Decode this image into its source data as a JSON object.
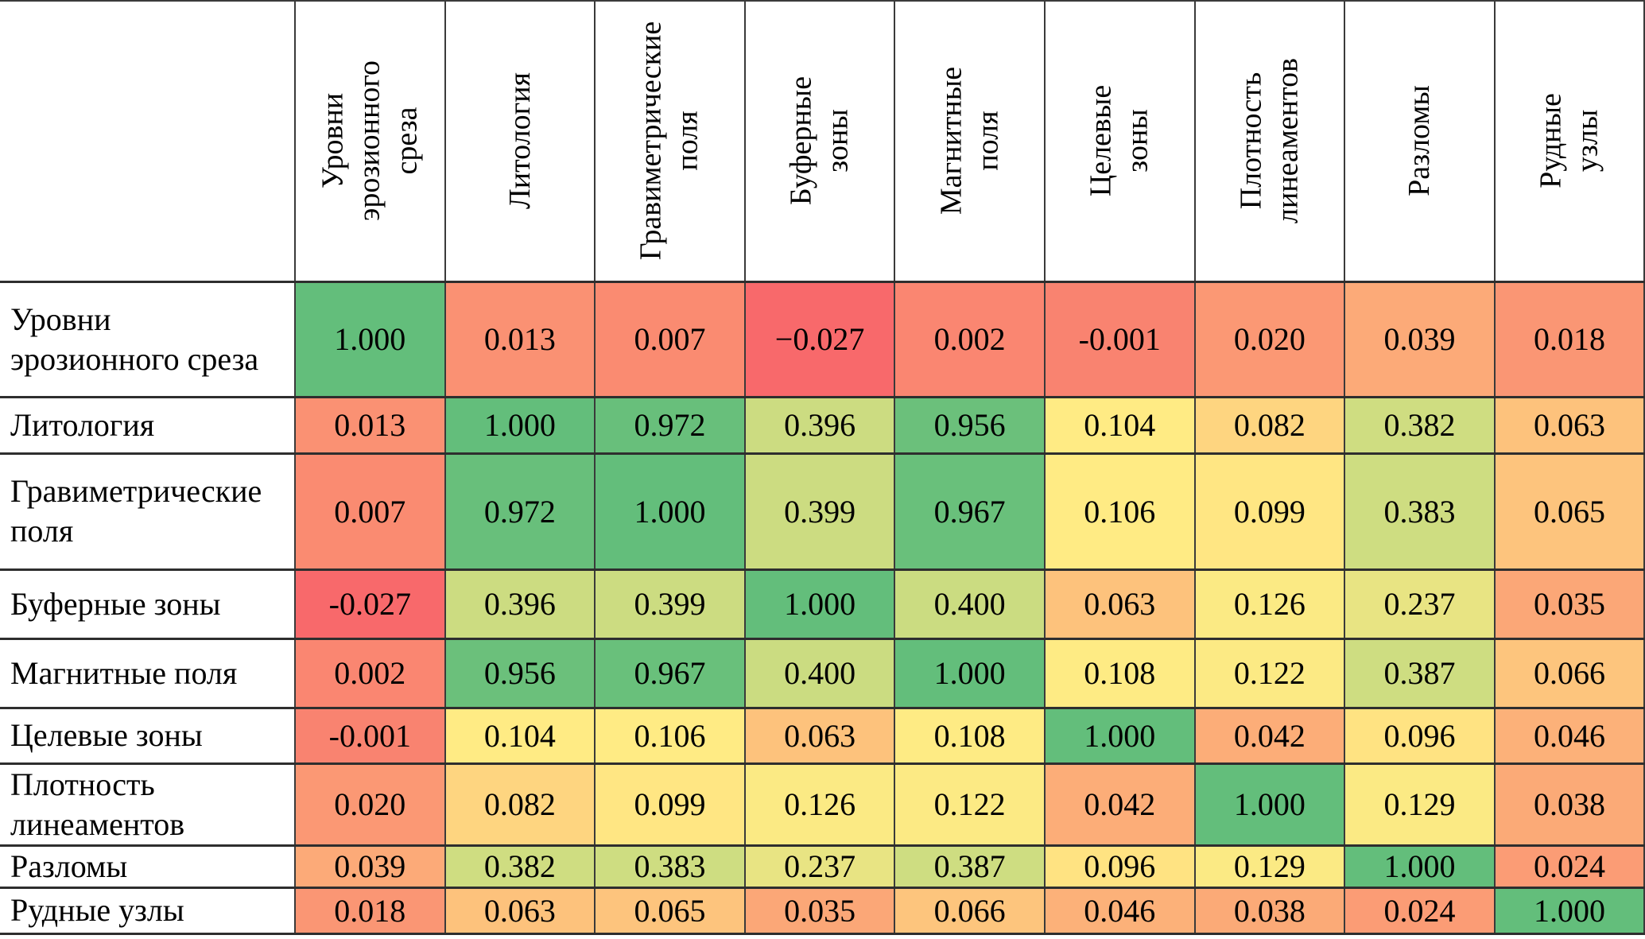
{
  "table": {
    "corner_label": "",
    "columns": [
      {
        "label": "Уровни\nэрозионного\nсреза"
      },
      {
        "label": "Литология"
      },
      {
        "label": "Гравиметрические\nполя"
      },
      {
        "label": "Буферные\nзоны"
      },
      {
        "label": "Магнитные\nполя"
      },
      {
        "label": "Целевые\nзоны"
      },
      {
        "label": "Плотность\nлинеаментов"
      },
      {
        "label": "Разломы"
      },
      {
        "label": "Рудные\nузлы"
      }
    ],
    "rows": [
      {
        "label": "Уровни\nэрозионного среза",
        "cells": [
          "1.000",
          "0.013",
          "0.007",
          "−0.027",
          "0.002",
          "-0.001",
          "0.020",
          "0.039",
          "0.018"
        ]
      },
      {
        "label": "Литология",
        "cells": [
          "0.013",
          "1.000",
          "0.972",
          "0.396",
          "0.956",
          "0.104",
          "0.082",
          "0.382",
          "0.063"
        ]
      },
      {
        "label": "Гравиметрические\nполя",
        "cells": [
          "0.007",
          "0.972",
          "1.000",
          "0.399",
          "0.967",
          "0.106",
          "0.099",
          "0.383",
          "0.065"
        ]
      },
      {
        "label": "Буферные зоны",
        "cells": [
          "-0.027",
          "0.396",
          "0.399",
          "1.000",
          "0.400",
          "0.063",
          "0.126",
          "0.237",
          "0.035"
        ]
      },
      {
        "label": "Магнитные поля",
        "cells": [
          "0.002",
          "0.956",
          "0.967",
          "0.400",
          "1.000",
          "0.108",
          "0.122",
          "0.387",
          "0.066"
        ]
      },
      {
        "label": "Целевые зоны",
        "cells": [
          "-0.001",
          "0.104",
          "0.106",
          "0.063",
          "0.108",
          "1.000",
          "0.042",
          "0.096",
          "0.046"
        ]
      },
      {
        "label": "Плотность\nлинеаментов",
        "cells": [
          "0.020",
          "0.082",
          "0.099",
          "0.126",
          "0.122",
          "0.042",
          "1.000",
          "0.129",
          "0.038"
        ]
      },
      {
        "label": "Разломы",
        "cells": [
          "0.039",
          "0.382",
          "0.383",
          "0.237",
          "0.387",
          "0.096",
          "0.129",
          "1.000",
          "0.024"
        ]
      },
      {
        "label": "Рудные узлы",
        "cells": [
          "0.018",
          "0.063",
          "0.065",
          "0.035",
          "0.066",
          "0.046",
          "0.038",
          "0.024",
          "1.000"
        ]
      }
    ]
  },
  "chart_data": {
    "type": "heatmap",
    "title": "",
    "row_labels": [
      "Уровни эрозионного среза",
      "Литология",
      "Гравиметрические поля",
      "Буферные зоны",
      "Магнитные поля",
      "Целевые зоны",
      "Плотность линеаментов",
      "Разломы",
      "Рудные узлы"
    ],
    "col_labels": [
      "Уровни эрозионного среза",
      "Литология",
      "Гравиметрические поля",
      "Буферные зоны",
      "Магнитные поля",
      "Целевые зоны",
      "Плотность линеаментов",
      "Разломы",
      "Рудные узлы"
    ],
    "values": [
      [
        1.0,
        0.013,
        0.007,
        -0.027,
        0.002,
        -0.001,
        0.02,
        0.039,
        0.018
      ],
      [
        0.013,
        1.0,
        0.972,
        0.396,
        0.956,
        0.104,
        0.082,
        0.382,
        0.063
      ],
      [
        0.007,
        0.972,
        1.0,
        0.399,
        0.967,
        0.106,
        0.099,
        0.383,
        0.065
      ],
      [
        -0.027,
        0.396,
        0.399,
        1.0,
        0.4,
        0.063,
        0.126,
        0.237,
        0.035
      ],
      [
        0.002,
        0.956,
        0.967,
        0.4,
        1.0,
        0.108,
        0.122,
        0.387,
        0.066
      ],
      [
        -0.001,
        0.104,
        0.106,
        0.063,
        0.108,
        1.0,
        0.042,
        0.096,
        0.046
      ],
      [
        0.02,
        0.082,
        0.099,
        0.126,
        0.122,
        0.042,
        1.0,
        0.129,
        0.038
      ],
      [
        0.039,
        0.382,
        0.383,
        0.237,
        0.387,
        0.096,
        0.129,
        1.0,
        0.024
      ],
      [
        0.018,
        0.063,
        0.065,
        0.035,
        0.066,
        0.046,
        0.038,
        0.024,
        1.0
      ]
    ],
    "colormap": {
      "style": "3-color-scale",
      "min": -0.027,
      "mid": 0.104,
      "max": 1.0,
      "min_color": "#F8696B",
      "mid_color": "#FFEB84",
      "max_color": "#63BE7B"
    },
    "grid": true,
    "legend": false,
    "cell_text_color": "#000000",
    "border_color": "#3a3a3a"
  }
}
